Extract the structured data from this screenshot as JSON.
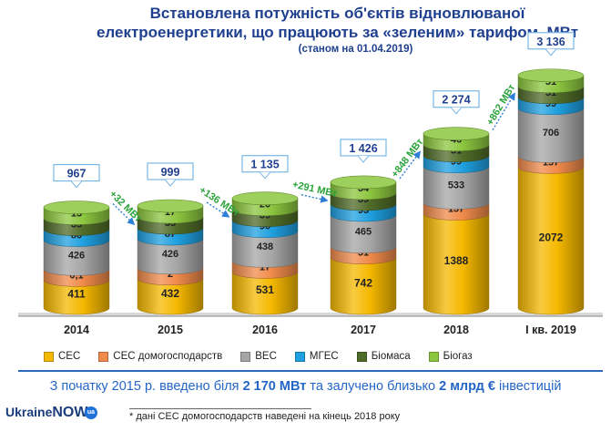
{
  "header": {
    "title": "Встановлена потужність об'єктів відновлюваної електроенергетики, що працюють за «зеленим» тарифом, МВт",
    "subtitle": "(станом на 01.04.2019)"
  },
  "chart_data": {
    "type": "bar",
    "stacked": true,
    "style": "3d-cylinders",
    "categories": [
      "2014",
      "2015",
      "2016",
      "2017",
      "2018",
      "I кв. 2019"
    ],
    "series": [
      {
        "name": "СЕС",
        "color": "#f5b800",
        "values": [
          411,
          432,
          531,
          742,
          1388,
          2072
        ],
        "labels": [
          "411",
          "432",
          "531",
          "742",
          "1388",
          "2072"
        ]
      },
      {
        "name": "СЕС домогосподарств",
        "color": "#f08a4b",
        "values": [
          0.1,
          2,
          17,
          51,
          157,
          157
        ],
        "labels": [
          "0,1",
          "2",
          "17",
          "51",
          "157",
          "157"
        ]
      },
      {
        "name": "ВЕС",
        "color": "#a6a6a6",
        "values": [
          426,
          426,
          438,
          465,
          533,
          706
        ],
        "labels": [
          "426",
          "426",
          "438",
          "465",
          "533",
          "706"
        ]
      },
      {
        "name": "МГЕС",
        "color": "#1fa0e0",
        "values": [
          80,
          87,
          90,
          95,
          99,
          99
        ],
        "labels": [
          "80",
          "87",
          "90",
          "95",
          "99",
          "99"
        ]
      },
      {
        "name": "Біомаса",
        "color": "#4f6b28",
        "values": [
          35,
          35,
          39,
          39,
          51,
          51
        ],
        "labels": [
          "35",
          "35",
          "39",
          "39",
          "51",
          "51"
        ]
      },
      {
        "name": "Біогаз",
        "color": "#8cc63f",
        "values": [
          15,
          17,
          20,
          34,
          46,
          51
        ],
        "labels": [
          "15",
          "17",
          "20",
          "34",
          "46",
          "51"
        ]
      }
    ],
    "totals": [
      "967",
      "999",
      "1 135",
      "1 426",
      "2 274",
      "3 136"
    ],
    "increments": [
      "+32 МВт",
      "+136 МВт",
      "+291 МВт",
      "+848 МВт",
      "+862 МВт"
    ],
    "legend_position": "bottom",
    "grid": false
  },
  "note": {
    "prefix": "З початку 2015 р. введено  біля ",
    "capacity": "2 170 МВт",
    "middle": " та залучено близько  ",
    "investment": "2 млрд € ",
    "suffix": "інвестицій"
  },
  "footnote": "* дані СЕС домогосподарств  наведені на кінець 2018 року",
  "logo": {
    "text1": "Ukraine",
    "text2": "NOW",
    "badge": "ua"
  }
}
